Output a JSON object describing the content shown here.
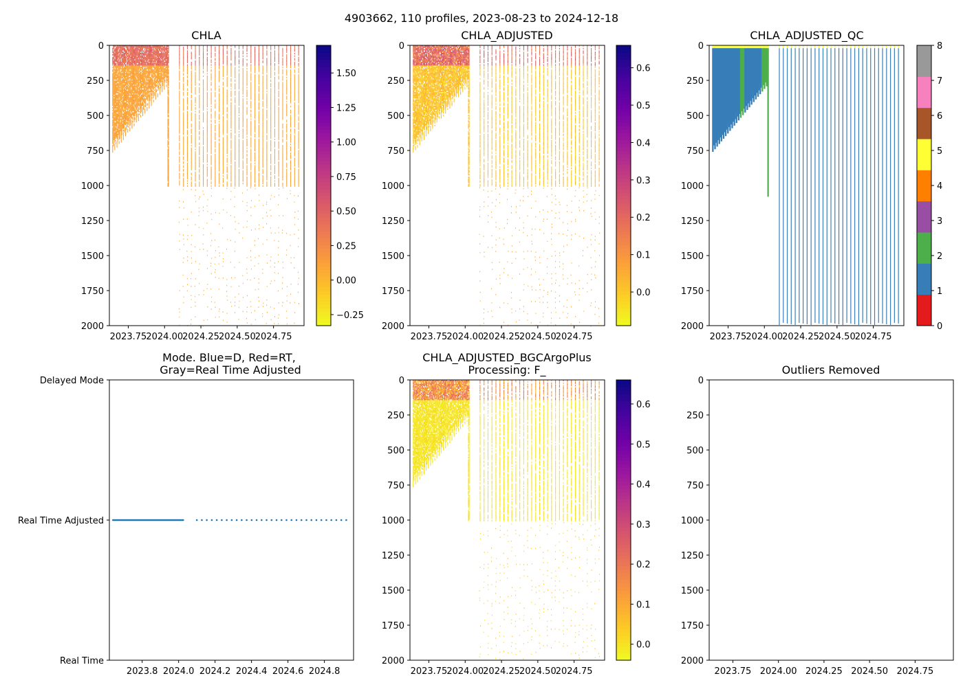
{
  "suptitle": "4903662, 110 profiles, 2023-08-23 to 2024-12-18",
  "colors": {
    "dot_blue": "#1f77b4",
    "plasma_r": [
      "#f0f921",
      "#fdca26",
      "#fb9f3a",
      "#ed7953",
      "#d8576b",
      "#bd3786",
      "#9c179e",
      "#7201a8",
      "#46039f",
      "#0d0887"
    ],
    "qc_colors": [
      "#e41a1c",
      "#377eb8",
      "#4daf4a",
      "#984ea3",
      "#ff7f00",
      "#ffff33",
      "#a65628",
      "#f781bf",
      "#999999"
    ]
  },
  "chart_data": [
    {
      "id": "chla",
      "type": "heatmap",
      "title": "CHLA",
      "xlim": [
        2023.62,
        2024.96
      ],
      "ylim": [
        2000,
        0
      ],
      "xticks": [
        "2023.75",
        "2024.00",
        "2024.25",
        "2024.50",
        "2024.75"
      ],
      "xtick_values": [
        2023.75,
        2024.0,
        2024.25,
        2024.5,
        2024.75
      ],
      "yticks": [
        "0",
        "250",
        "500",
        "750",
        "1000",
        "1250",
        "1500",
        "1750",
        "2000"
      ],
      "colorbar": {
        "vmin": -0.33,
        "vmax": 1.7,
        "ticks": [
          "−0.25",
          "0.00",
          "0.25",
          "0.50",
          "0.75",
          "1.00",
          "1.25",
          "1.50"
        ],
        "tick_values": [
          -0.25,
          0,
          0.25,
          0.5,
          0.75,
          1.0,
          1.25,
          1.5
        ]
      }
    },
    {
      "id": "chla_adj",
      "type": "heatmap",
      "title": "CHLA_ADJUSTED",
      "xlim": [
        2023.62,
        2024.96
      ],
      "ylim": [
        2000,
        0
      ],
      "xticks": [
        "2023.75",
        "2024.00",
        "2024.25",
        "2024.50",
        "2024.75"
      ],
      "xtick_values": [
        2023.75,
        2024.0,
        2024.25,
        2024.5,
        2024.75
      ],
      "yticks": [
        "0",
        "250",
        "500",
        "750",
        "1000",
        "1250",
        "1500",
        "1750",
        "2000"
      ],
      "colorbar": {
        "vmin": -0.09,
        "vmax": 0.66,
        "ticks": [
          "0.0",
          "0.1",
          "0.2",
          "0.3",
          "0.4",
          "0.5",
          "0.6"
        ],
        "tick_values": [
          0,
          0.1,
          0.2,
          0.3,
          0.4,
          0.5,
          0.6
        ]
      }
    },
    {
      "id": "chla_qc",
      "type": "heatmap",
      "title": "CHLA_ADJUSTED_QC",
      "xlim": [
        2023.62,
        2024.96
      ],
      "ylim": [
        2000,
        0
      ],
      "xticks": [
        "2023.75",
        "2024.00",
        "2024.25",
        "2024.50",
        "2024.75"
      ],
      "xtick_values": [
        2023.75,
        2024.0,
        2024.25,
        2024.5,
        2024.75
      ],
      "yticks": [
        "0",
        "250",
        "500",
        "750",
        "1000",
        "1250",
        "1500",
        "1750",
        "2000"
      ],
      "colorbar": {
        "vmin": 0,
        "vmax": 8,
        "ticks": [
          "0",
          "1",
          "2",
          "3",
          "4",
          "5",
          "6",
          "7",
          "8"
        ],
        "tick_values": [
          0,
          1,
          2,
          3,
          4,
          5,
          6,
          7,
          8
        ]
      }
    },
    {
      "id": "mode",
      "type": "scatter",
      "title_lines": [
        "Mode. Blue=D, Red=RT,",
        "Gray=Real Time Adjusted"
      ],
      "xlim": [
        2023.62,
        2024.96
      ],
      "ylim": [
        0,
        2
      ],
      "xticks": [
        "2023.8",
        "2024.0",
        "2024.2",
        "2024.4",
        "2024.6",
        "2024.8"
      ],
      "xtick_values": [
        2023.8,
        2024.0,
        2024.2,
        2024.4,
        2024.6,
        2024.8
      ],
      "yticks": [
        "Delayed Mode",
        "Real Time Adjusted",
        "Real Time"
      ],
      "ytick_values": [
        2,
        1,
        0
      ],
      "series": [
        {
          "name": "Real Time Adjusted",
          "y": 1,
          "x_start": 2023.64,
          "x_end": 2024.96,
          "count": 110
        }
      ]
    },
    {
      "id": "bgc",
      "type": "heatmap",
      "title_lines": [
        "CHLA_ADJUSTED_BGCArgoPlus",
        "Processing: F_"
      ],
      "xlim": [
        2023.62,
        2024.96
      ],
      "ylim": [
        2000,
        0
      ],
      "xticks": [
        "2023.75",
        "2024.00",
        "2024.25",
        "2024.50",
        "2024.75"
      ],
      "xtick_values": [
        2023.75,
        2024.0,
        2024.25,
        2024.5,
        2024.75
      ],
      "yticks": [
        "0",
        "250",
        "500",
        "750",
        "1000",
        "1250",
        "1500",
        "1750",
        "2000"
      ],
      "colorbar": {
        "vmin": -0.04,
        "vmax": 0.66,
        "ticks": [
          "0.0",
          "0.1",
          "0.2",
          "0.3",
          "0.4",
          "0.5",
          "0.6"
        ],
        "tick_values": [
          0,
          0.1,
          0.2,
          0.3,
          0.4,
          0.5,
          0.6
        ]
      }
    },
    {
      "id": "outliers",
      "type": "scatter",
      "title": "Outliers Removed",
      "xlim": [
        2023.62,
        2024.96
      ],
      "ylim": [
        2000,
        0
      ],
      "xticks": [
        "2023.75",
        "2024.00",
        "2024.25",
        "2024.50",
        "2024.75"
      ],
      "xtick_values": [
        2023.75,
        2024.0,
        2024.25,
        2024.5,
        2024.75
      ],
      "yticks": [
        "0",
        "250",
        "500",
        "750",
        "1000",
        "1250",
        "1500",
        "1750",
        "2000"
      ],
      "series": []
    }
  ]
}
